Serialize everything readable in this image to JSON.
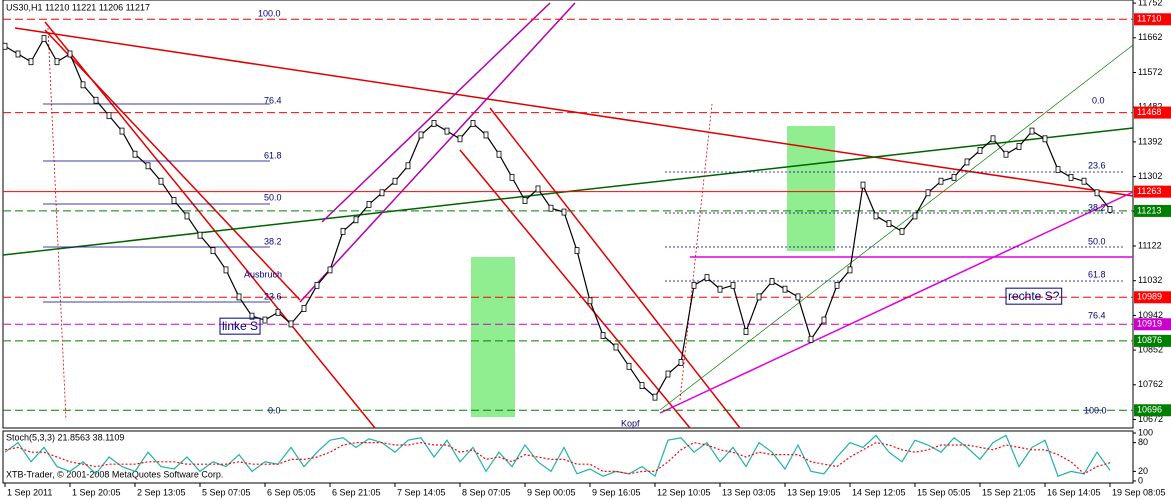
{
  "chart_data": [
    {
      "type": "line",
      "title": "US30,H1  11210 11221 11206 11217",
      "footer": "XTB-Trader, © 2001-2008 MetaQuotes Software Corp.",
      "categories": [
        "1 Sep 2011",
        null,
        null,
        null,
        null,
        "1 Sep 20:05",
        null,
        null,
        null,
        null,
        "2 Sep 13:05",
        null,
        null,
        null,
        null,
        "5 Sep 07:05",
        null,
        null,
        null,
        null,
        "6 Sep 05:05",
        null,
        null,
        null,
        null,
        "6 Sep 21:05",
        null,
        null,
        null,
        null,
        "7 Sep 14:05",
        null,
        null,
        null,
        null,
        "8 Sep 07:05",
        null,
        null,
        null,
        null,
        "9 Sep 00:05",
        null,
        null,
        null,
        null,
        "9 Sep 16:05",
        null,
        null,
        null,
        null,
        "12 Sep 10:05",
        null,
        null,
        null,
        null,
        "13 Sep 03:05",
        null,
        null,
        null,
        null,
        "13 Sep 19:05",
        null,
        null,
        null,
        null,
        "14 Sep 12:05",
        null,
        null,
        null,
        null,
        "15 Sep 05:05",
        null,
        null,
        null,
        null,
        "15 Sep 21:05",
        null,
        null,
        null,
        null,
        "16 Sep 14:05",
        null,
        null,
        null,
        null,
        "19 Sep 08:05"
      ],
      "series": [
        {
          "color": "#000000",
          "values": [
            11640,
            11620,
            11600,
            11660,
            11600,
            11620,
            11540,
            11500,
            11460,
            11420,
            11360,
            11330,
            11290,
            11240,
            11200,
            11150,
            11110,
            11060,
            10990,
            10940,
            10930,
            10950,
            10920,
            10960,
            11020,
            11060,
            11160,
            11190,
            11230,
            11260,
            11290,
            11330,
            11410,
            11440,
            11420,
            11400,
            11440,
            11410,
            11360,
            11300,
            11240,
            11270,
            11220,
            11210,
            11110,
            10980,
            10890,
            10860,
            10810,
            10760,
            10730,
            10790,
            10820,
            11020,
            11040,
            11010,
            11020,
            10900,
            10990,
            11030,
            11010,
            10990,
            10880,
            10930,
            11020,
            11060,
            11280,
            11200,
            11180,
            11160,
            11200,
            11260,
            11290,
            11300,
            11340,
            11370,
            11400,
            11360,
            11380,
            11420,
            11400,
            11320,
            11300,
            11290,
            11260,
            11217
          ]
        }
      ],
      "ylim": [
        10650,
        11760
      ],
      "yticks": [
        10672,
        10762,
        10852,
        10942,
        11032,
        11122,
        11212,
        11302,
        11392,
        11482,
        11572,
        11662,
        11752
      ],
      "grid": false,
      "levels": [
        {
          "value": 11710,
          "color": "#ff0000",
          "dash": true
        },
        {
          "value": 11468,
          "color": "#ff0000",
          "dash": true
        },
        {
          "value": 11263,
          "color": "#ff0000",
          "dash": false
        },
        {
          "value": 11213,
          "color": "#008000",
          "dash": true
        },
        {
          "value": 10989,
          "color": "#ff0000",
          "dash": true
        },
        {
          "value": 10919,
          "color": "#cc00cc",
          "dash": true
        },
        {
          "value": 10876,
          "color": "#008000",
          "dash": true
        },
        {
          "value": 10696,
          "color": "#008000",
          "dash": true
        }
      ],
      "annotations": [
        "100.0",
        "76.4",
        "61.8",
        "50.0",
        "38.2",
        "23.6",
        "0.0",
        "0.0",
        "23.6",
        "38.2",
        "50.0",
        "61.8",
        "76.4",
        "100.0",
        "linke S",
        "rechte S?",
        "Ausbruch",
        "Kopf"
      ]
    },
    {
      "type": "line",
      "title": "Stoch(5,3,3) 21.8563 38.1109",
      "ylim": [
        0,
        100
      ],
      "yticks": [
        0,
        20,
        80,
        100
      ],
      "series": [
        {
          "color": "#20b2aa",
          "dash": false,
          "values": [
            60,
            80,
            40,
            70,
            30,
            20,
            40,
            15,
            50,
            30,
            20,
            60,
            30,
            25,
            50,
            20,
            40,
            30,
            55,
            20,
            40,
            35,
            70,
            30,
            60,
            85,
            90,
            70,
            88,
            80,
            60,
            85,
            90,
            50,
            85,
            40,
            70,
            20,
            60,
            30,
            75,
            40,
            20,
            70,
            15,
            25,
            10,
            20,
            15,
            30,
            10,
            85,
            90,
            60,
            80,
            40,
            70,
            30,
            80,
            60,
            25,
            75,
            20,
            15,
            50,
            80,
            70,
            95,
            60,
            40,
            85,
            75,
            60,
            90,
            70,
            45,
            80,
            95,
            30,
            70,
            85,
            10,
            20,
            15,
            60,
            22
          ]
        },
        {
          "color": "#ff0000",
          "dash": true,
          "values": [
            65,
            70,
            60,
            60,
            50,
            40,
            35,
            30,
            35,
            35,
            35,
            40,
            40,
            40,
            35,
            35,
            35,
            35,
            40,
            35,
            35,
            35,
            45,
            45,
            50,
            60,
            75,
            80,
            80,
            80,
            75,
            75,
            80,
            75,
            75,
            60,
            65,
            45,
            50,
            40,
            55,
            50,
            45,
            45,
            35,
            35,
            20,
            20,
            15,
            20,
            20,
            40,
            65,
            80,
            75,
            65,
            60,
            50,
            60,
            55,
            55,
            55,
            40,
            35,
            30,
            50,
            65,
            80,
            75,
            65,
            60,
            65,
            75,
            75,
            75,
            70,
            65,
            75,
            70,
            65,
            65,
            55,
            40,
            15,
            30,
            38
          ]
        }
      ]
    }
  ]
}
